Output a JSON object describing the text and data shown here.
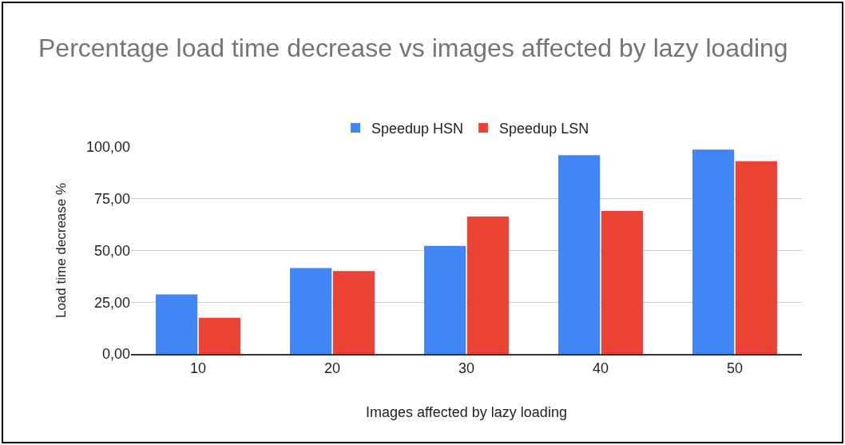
{
  "chart_data": {
    "type": "bar",
    "title": "Percentage load time decrease vs images affected by lazy loading",
    "xlabel": "Images affected by lazy loading",
    "ylabel": "Load time decrease %",
    "categories": [
      "10",
      "20",
      "30",
      "40",
      "50"
    ],
    "series": [
      {
        "name": "Speedup HSN",
        "color": "#4285f4",
        "values": [
          28.8,
          41.5,
          52.2,
          96.0,
          98.7
        ]
      },
      {
        "name": "Speedup LSN",
        "color": "#ea4335",
        "values": [
          17.5,
          40.1,
          66.4,
          69.1,
          93.1
        ]
      }
    ],
    "ylim": [
      0,
      100
    ],
    "yticks": [
      {
        "value": 0,
        "label": "0,00"
      },
      {
        "value": 25,
        "label": "25,00"
      },
      {
        "value": 50,
        "label": "50,00"
      },
      {
        "value": 75,
        "label": "75,00"
      },
      {
        "value": 100,
        "label": "100,00"
      }
    ],
    "grid": "y",
    "legend": "top"
  }
}
